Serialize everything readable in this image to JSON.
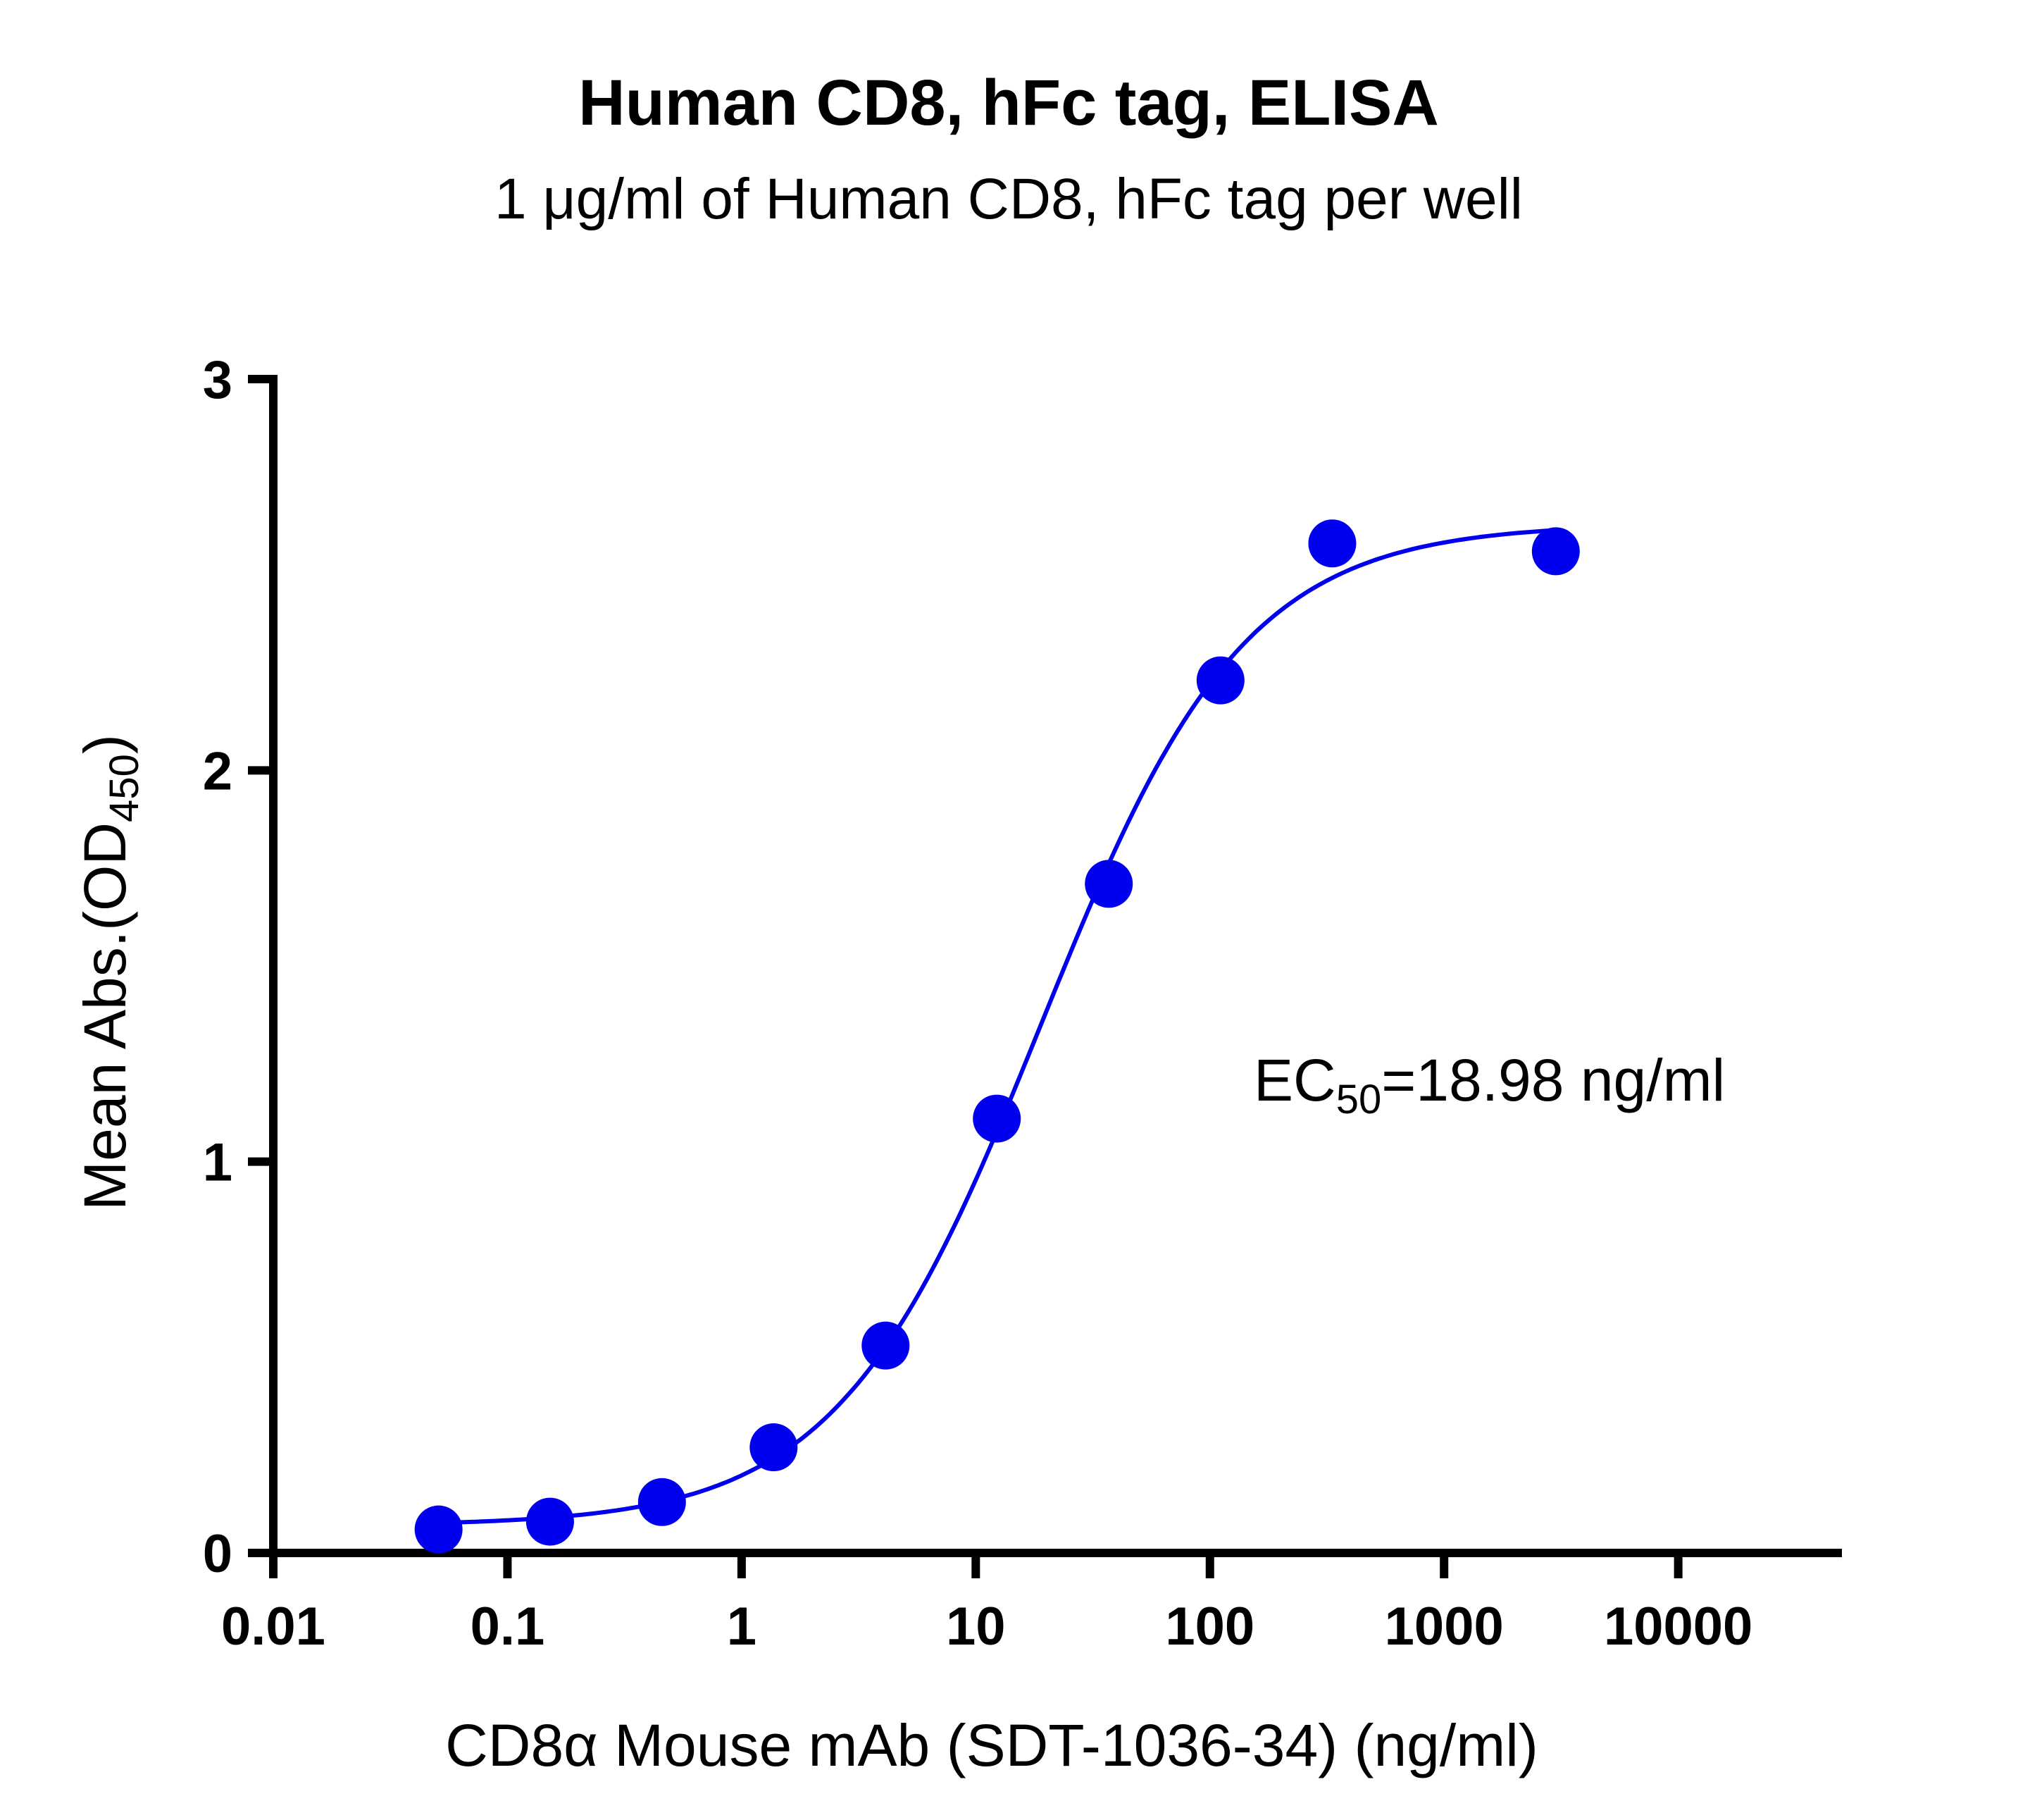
{
  "chart_data": {
    "type": "scatter",
    "title": "Human CD8, hFc tag, ELISA",
    "subtitle": "1 μg/ml of Human CD8, hFc tag per well",
    "xlabel": "CD8α Mouse mAb (SDT-1036-34) (ng/ml)",
    "ylabel": {
      "main": "Mean Abs.(OD",
      "sub": "450",
      "end": ")"
    },
    "x_scale": "log",
    "xlim": [
      0.01,
      50000
    ],
    "ylim": [
      0,
      3
    ],
    "x_ticks": [
      {
        "value": 0.01,
        "label": "0.01"
      },
      {
        "value": 0.1,
        "label": "0.1"
      },
      {
        "value": 1,
        "label": "1"
      },
      {
        "value": 10,
        "label": "10"
      },
      {
        "value": 100,
        "label": "100"
      },
      {
        "value": 1000,
        "label": "1000"
      },
      {
        "value": 10000,
        "label": "10000"
      }
    ],
    "y_ticks": [
      {
        "value": 0,
        "label": "0"
      },
      {
        "value": 1,
        "label": "1"
      },
      {
        "value": 2,
        "label": "2"
      },
      {
        "value": 3,
        "label": "3"
      }
    ],
    "grid": false,
    "color": "#0000ee",
    "series": [
      {
        "x": [
          0.0508,
          0.152,
          0.457,
          1.37,
          4.12,
          12.3,
          37.0,
          111,
          333,
          3000
        ],
        "y": [
          0.06,
          0.08,
          0.13,
          0.27,
          0.53,
          1.11,
          1.71,
          2.23,
          2.58,
          2.56
        ]
      }
    ],
    "fit": {
      "model": "4PL",
      "bottom": 0.07,
      "top": 2.63,
      "ec50": 18.98,
      "hill": 1.0,
      "x_range": [
        0.0508,
        3000
      ]
    },
    "annotation": {
      "main": "EC",
      "sub": "50",
      "end": "=18.98 ng/ml"
    }
  }
}
